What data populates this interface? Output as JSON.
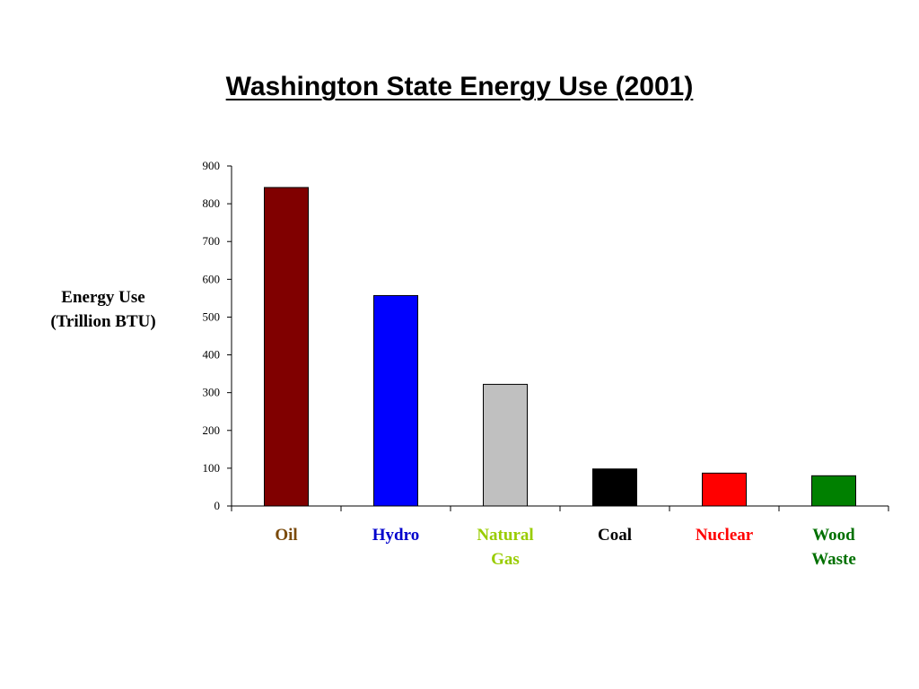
{
  "chart_data": {
    "type": "bar",
    "title": "Washington State Energy Use (2001)",
    "ylabel_lines": [
      "Energy Use",
      "(Trillion BTU)"
    ],
    "xlabel": "",
    "ylim": [
      0,
      900
    ],
    "yticks": [
      0,
      100,
      200,
      300,
      400,
      500,
      600,
      700,
      800,
      900
    ],
    "grid": false,
    "legend": "none",
    "categories": [
      {
        "label_lines": [
          "Oil"
        ],
        "value": 843,
        "bar_color": "#800000",
        "label_color": "#7a4a0a"
      },
      {
        "label_lines": [
          "Hydro"
        ],
        "value": 557,
        "bar_color": "#0000ff",
        "label_color": "#0000cc"
      },
      {
        "label_lines": [
          "Natural",
          "Gas"
        ],
        "value": 322,
        "bar_color": "#c0c0c0",
        "label_color": "#99cc00"
      },
      {
        "label_lines": [
          "Coal"
        ],
        "value": 98,
        "bar_color": "#000000",
        "label_color": "#000000"
      },
      {
        "label_lines": [
          "Nuclear"
        ],
        "value": 87,
        "bar_color": "#ff0000",
        "label_color": "#ff0000"
      },
      {
        "label_lines": [
          "Wood",
          "Waste"
        ],
        "value": 80,
        "bar_color": "#008000",
        "label_color": "#007000"
      }
    ]
  }
}
